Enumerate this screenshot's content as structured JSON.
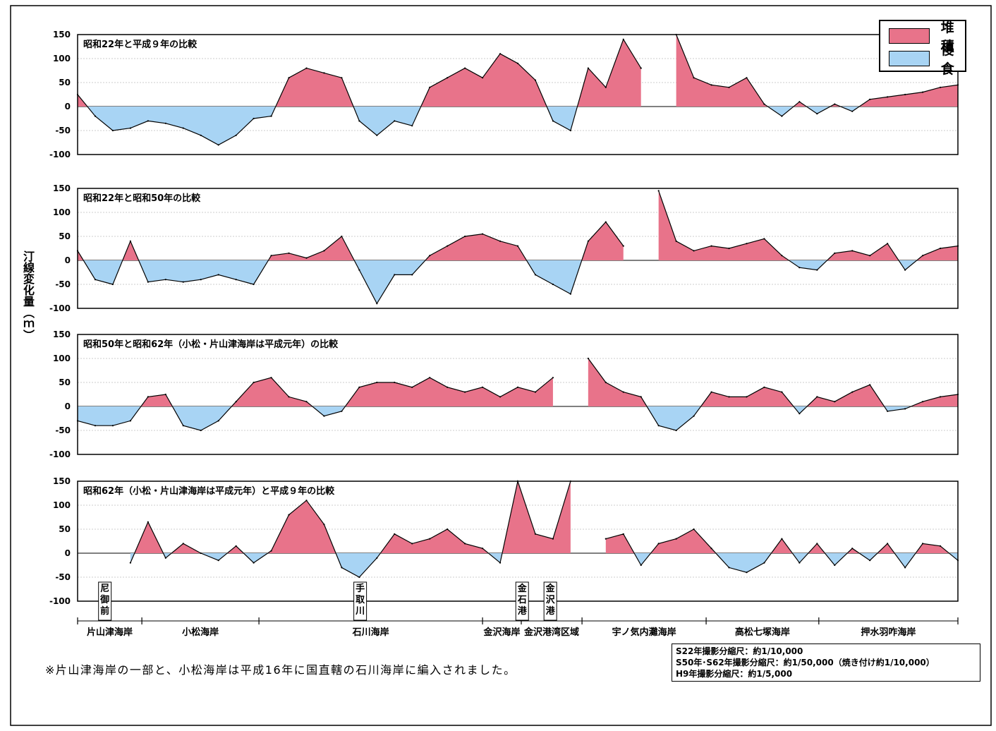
{
  "ylabel": "汀線変化量（ｍ）",
  "legend": [
    {
      "label": "堆積",
      "color": "#e8738a"
    },
    {
      "label": "侵食",
      "color": "#a8d4f4"
    }
  ],
  "colors": {
    "accretion": "#e8738a",
    "erosion": "#a8d4f4",
    "line": "#000000"
  },
  "note": "※片山津海岸の一部と、小松海岸は平成16年に国直轄の石川海岸に編入されました。",
  "scale_notes": [
    "S22年撮影分縮尺：約1/10,000",
    "S50年･S62年撮影分縮尺：約1/50,000（焼き付け約1/10,000）",
    "H9年撮影分縮尺：約1/5,000"
  ],
  "landmarks": [
    {
      "label": "尼御前",
      "pos": 0.031
    },
    {
      "label": "手取川",
      "pos": 0.321
    },
    {
      "label": "金石港",
      "pos": 0.505
    },
    {
      "label": "金沢港",
      "pos": 0.537
    }
  ],
  "coasts": [
    {
      "label": "片山津海岸",
      "start": 0.0,
      "end": 0.073
    },
    {
      "label": "小松海岸",
      "start": 0.073,
      "end": 0.206
    },
    {
      "label": "石川海岸",
      "start": 0.206,
      "end": 0.46
    },
    {
      "label": "金沢海岸",
      "start": 0.46,
      "end": 0.504
    },
    {
      "label": "金沢港湾区域",
      "start": 0.504,
      "end": 0.573
    },
    {
      "label": "宇ノ気内灘海岸",
      "start": 0.573,
      "end": 0.714
    },
    {
      "label": "高松七塚海岸",
      "start": 0.714,
      "end": 0.842
    },
    {
      "label": "押水羽咋海岸",
      "start": 0.842,
      "end": 1.0
    }
  ],
  "chart_data": [
    {
      "type": "area",
      "title": "昭和22年と平成９年の比較",
      "ylim": [
        -100,
        150
      ],
      "yticks": [
        150,
        100,
        50,
        0,
        -50,
        -100
      ],
      "x": [
        0,
        0.02,
        0.04,
        0.06,
        0.08,
        0.1,
        0.12,
        0.14,
        0.16,
        0.18,
        0.2,
        0.22,
        0.24,
        0.26,
        0.28,
        0.3,
        0.32,
        0.34,
        0.36,
        0.38,
        0.4,
        0.42,
        0.44,
        0.46,
        0.48,
        0.5,
        0.52,
        0.54,
        0.56,
        0.58,
        0.6,
        0.62,
        0.64,
        0.66,
        0.68,
        0.7,
        0.72,
        0.74,
        0.76,
        0.78,
        0.8,
        0.82,
        0.84,
        0.86,
        0.88,
        0.9,
        0.92,
        0.94,
        0.96,
        0.98,
        1.0
      ],
      "values": [
        25,
        -20,
        -50,
        -45,
        -30,
        -35,
        -45,
        -60,
        -80,
        -60,
        -25,
        -20,
        60,
        80,
        70,
        60,
        -30,
        -60,
        -30,
        -40,
        40,
        60,
        80,
        60,
        110,
        90,
        55,
        -30,
        -50,
        80,
        40,
        140,
        80,
        null,
        150,
        60,
        45,
        40,
        60,
        5,
        -20,
        10,
        -15,
        5,
        -10,
        15,
        20,
        25,
        30,
        40,
        45
      ]
    },
    {
      "type": "area",
      "title": "昭和22年と昭和50年の比較",
      "ylim": [
        -100,
        150
      ],
      "yticks": [
        150,
        100,
        50,
        0,
        -50,
        -100
      ],
      "x": [
        0,
        0.02,
        0.04,
        0.06,
        0.08,
        0.1,
        0.12,
        0.14,
        0.16,
        0.18,
        0.2,
        0.22,
        0.24,
        0.26,
        0.28,
        0.3,
        0.32,
        0.34,
        0.36,
        0.38,
        0.4,
        0.42,
        0.44,
        0.46,
        0.48,
        0.5,
        0.52,
        0.54,
        0.56,
        0.58,
        0.6,
        0.62,
        0.64,
        0.66,
        0.68,
        0.7,
        0.72,
        0.74,
        0.76,
        0.78,
        0.8,
        0.82,
        0.84,
        0.86,
        0.88,
        0.9,
        0.92,
        0.94,
        0.96,
        0.98,
        1.0
      ],
      "values": [
        20,
        -40,
        -50,
        40,
        -45,
        -40,
        -45,
        -40,
        -30,
        -40,
        -50,
        10,
        15,
        5,
        20,
        50,
        -20,
        -90,
        -30,
        -30,
        10,
        30,
        50,
        55,
        40,
        30,
        -30,
        -50,
        -70,
        40,
        80,
        30,
        null,
        145,
        40,
        20,
        30,
        25,
        35,
        45,
        10,
        -15,
        -20,
        15,
        20,
        10,
        35,
        -20,
        10,
        25,
        30
      ]
    },
    {
      "type": "area",
      "title": "昭和50年と昭和62年（小松・片山津海岸は平成元年）の比較",
      "ylim": [
        -100,
        150
      ],
      "yticks": [
        150,
        100,
        50,
        0,
        -50,
        -100
      ],
      "x": [
        0,
        0.02,
        0.04,
        0.06,
        0.08,
        0.1,
        0.12,
        0.14,
        0.16,
        0.18,
        0.2,
        0.22,
        0.24,
        0.26,
        0.28,
        0.3,
        0.32,
        0.34,
        0.36,
        0.38,
        0.4,
        0.42,
        0.44,
        0.46,
        0.48,
        0.5,
        0.52,
        0.54,
        0.56,
        0.58,
        0.6,
        0.62,
        0.64,
        0.66,
        0.68,
        0.7,
        0.72,
        0.74,
        0.76,
        0.78,
        0.8,
        0.82,
        0.84,
        0.86,
        0.88,
        0.9,
        0.92,
        0.94,
        0.96,
        0.98,
        1.0
      ],
      "values": [
        -30,
        -40,
        -40,
        -30,
        20,
        25,
        -40,
        -50,
        -30,
        10,
        50,
        60,
        20,
        10,
        -20,
        -10,
        40,
        50,
        50,
        40,
        60,
        40,
        30,
        40,
        20,
        40,
        30,
        60,
        null,
        100,
        50,
        30,
        20,
        -40,
        -50,
        -20,
        30,
        20,
        20,
        40,
        30,
        -15,
        20,
        10,
        30,
        45,
        -10,
        -5,
        10,
        20,
        25
      ]
    },
    {
      "type": "area",
      "title": "昭和62年（小松・片山津海岸は平成元年）と平成９年の比較",
      "ylim": [
        -100,
        150
      ],
      "yticks": [
        150,
        100,
        50,
        0,
        -50,
        -100
      ],
      "x": [
        0,
        0.02,
        0.04,
        0.06,
        0.08,
        0.1,
        0.12,
        0.14,
        0.16,
        0.18,
        0.2,
        0.22,
        0.24,
        0.26,
        0.28,
        0.3,
        0.32,
        0.34,
        0.36,
        0.38,
        0.4,
        0.42,
        0.44,
        0.46,
        0.48,
        0.5,
        0.52,
        0.54,
        0.56,
        0.58,
        0.6,
        0.62,
        0.64,
        0.66,
        0.68,
        0.7,
        0.72,
        0.74,
        0.76,
        0.78,
        0.8,
        0.82,
        0.84,
        0.86,
        0.88,
        0.9,
        0.92,
        0.94,
        0.96,
        0.98,
        1.0
      ],
      "values": [
        null,
        null,
        null,
        -20,
        65,
        -10,
        20,
        0,
        -15,
        15,
        -20,
        5,
        80,
        110,
        60,
        -30,
        -50,
        -10,
        40,
        20,
        30,
        50,
        20,
        10,
        -20,
        150,
        40,
        30,
        150,
        null,
        30,
        40,
        -25,
        20,
        30,
        50,
        10,
        -30,
        -40,
        -20,
        30,
        -20,
        20,
        -25,
        10,
        -15,
        20,
        -30,
        20,
        15,
        -15
      ]
    }
  ]
}
